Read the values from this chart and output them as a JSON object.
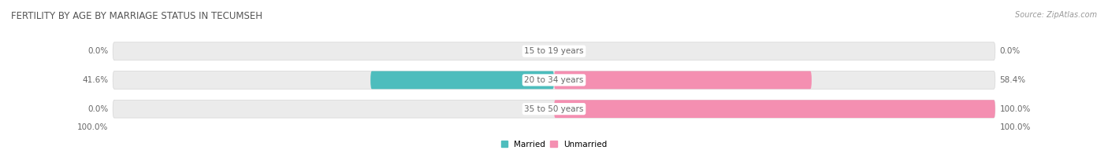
{
  "title": "FERTILITY BY AGE BY MARRIAGE STATUS IN TECUMSEH",
  "source": "Source: ZipAtlas.com",
  "categories": [
    "15 to 19 years",
    "20 to 34 years",
    "35 to 50 years"
  ],
  "married": [
    0.0,
    41.6,
    0.0
  ],
  "unmarried": [
    0.0,
    58.4,
    100.0
  ],
  "married_color": "#4dbdbd",
  "unmarried_color": "#f48fb1",
  "bar_bg_color": "#ebebeb",
  "bar_height": 0.62,
  "bottom_left_label": "100.0%",
  "bottom_right_label": "100.0%",
  "title_fontsize": 8.5,
  "label_fontsize": 7.5,
  "tick_fontsize": 7.5,
  "source_fontsize": 7,
  "title_color": "#555555",
  "source_color": "#999999",
  "value_color": "#666666",
  "cat_label_color": "#666666"
}
